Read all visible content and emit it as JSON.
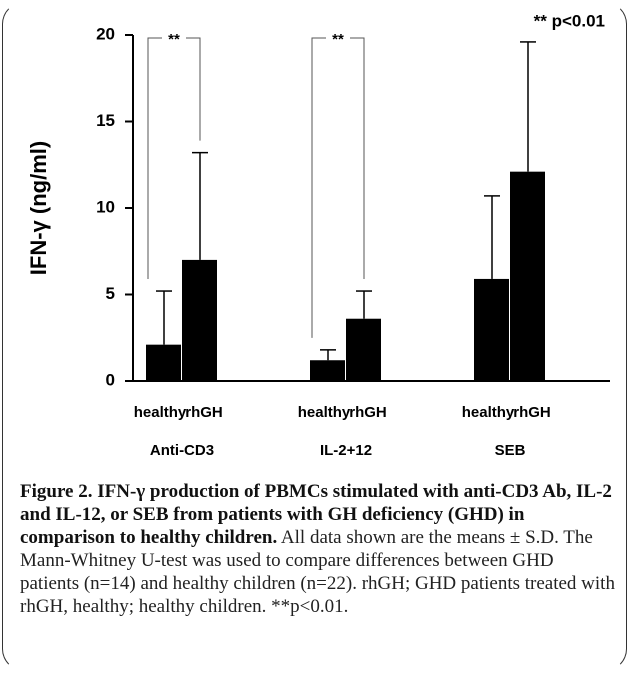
{
  "chart_data": {
    "type": "bar",
    "y_label": "IFN-γ (ng/ml)",
    "categories": [
      "Anti-CD3",
      "IL-2+12",
      "SEB"
    ],
    "series": [
      {
        "name": "healthy",
        "color": "#000000",
        "values": [
          2.1,
          1.2,
          5.9
        ],
        "errors": [
          3.1,
          0.6,
          4.8
        ]
      },
      {
        "name": "rhGH",
        "color": "#000000",
        "values": [
          7.0,
          3.6,
          12.1
        ],
        "errors": [
          6.2,
          1.6,
          7.5
        ]
      }
    ],
    "ylim": [
      0,
      20
    ],
    "yticks": [
      0,
      5,
      10,
      15,
      20
    ],
    "annotations": [
      "**",
      "**",
      "** p<0.01"
    ]
  },
  "caption": {
    "title": "Figure 2. IFN-γ production of PBMCs stimulated with anti-CD3 Ab, IL-2 and IL-12, or SEB from patients with GH deficiency (GHD) in comparison to healthy children.",
    "text": "All data shown are the means ± S.D. The Mann-Whitney U-test was used to compare differences between GHD patients (n=14) and healthy children (n=22). rhGH; GHD patients treated with rhGH, healthy; healthy children. **p<0.01."
  }
}
